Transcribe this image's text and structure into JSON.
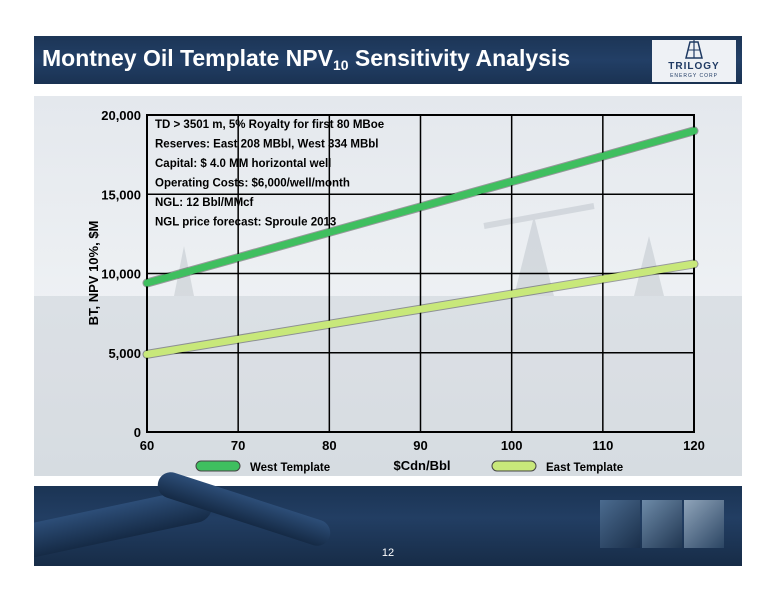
{
  "slide": {
    "title_main": "Montney Oil Template NPV",
    "title_sub": "10",
    "title_rest": " Sensitivity Analysis",
    "logo_name": "TRILOGY",
    "logo_sub": "ENERGY CORP",
    "page_number": "12"
  },
  "colors": {
    "title_bar": "#1f3a5f",
    "west_series": "#3fbf5f",
    "east_series": "#c8e87a"
  },
  "chart_data": {
    "type": "line",
    "xlabel": "$Cdn/Bbl",
    "ylabel": "BT, NPV 10%, $M",
    "xlim": [
      60,
      120
    ],
    "ylim": [
      0,
      20000
    ],
    "x_ticks": [
      "60",
      "70",
      "80",
      "90",
      "100",
      "110",
      "120"
    ],
    "y_ticks": [
      "0",
      "5,000",
      "10,000",
      "15,000",
      "20,000"
    ],
    "grid": true,
    "legend_position": "bottom",
    "series": [
      {
        "name": "West Template",
        "x": [
          60,
          120
        ],
        "y": [
          9400,
          19000
        ]
      },
      {
        "name": "East Template",
        "x": [
          60,
          120
        ],
        "y": [
          4900,
          10600
        ]
      }
    ],
    "annotations": [
      "TD > 3501 m, 5% Royalty for first 80 MBoe",
      "Reserves: East 208 MBbl, West 334 MBbl",
      "Capital: $ 4.0 MM horizontal well",
      "Operating Costs: $6,000/well/month",
      "NGL: 12 Bbl/MMcf",
      "NGL price forecast: Sproule 2013"
    ]
  }
}
